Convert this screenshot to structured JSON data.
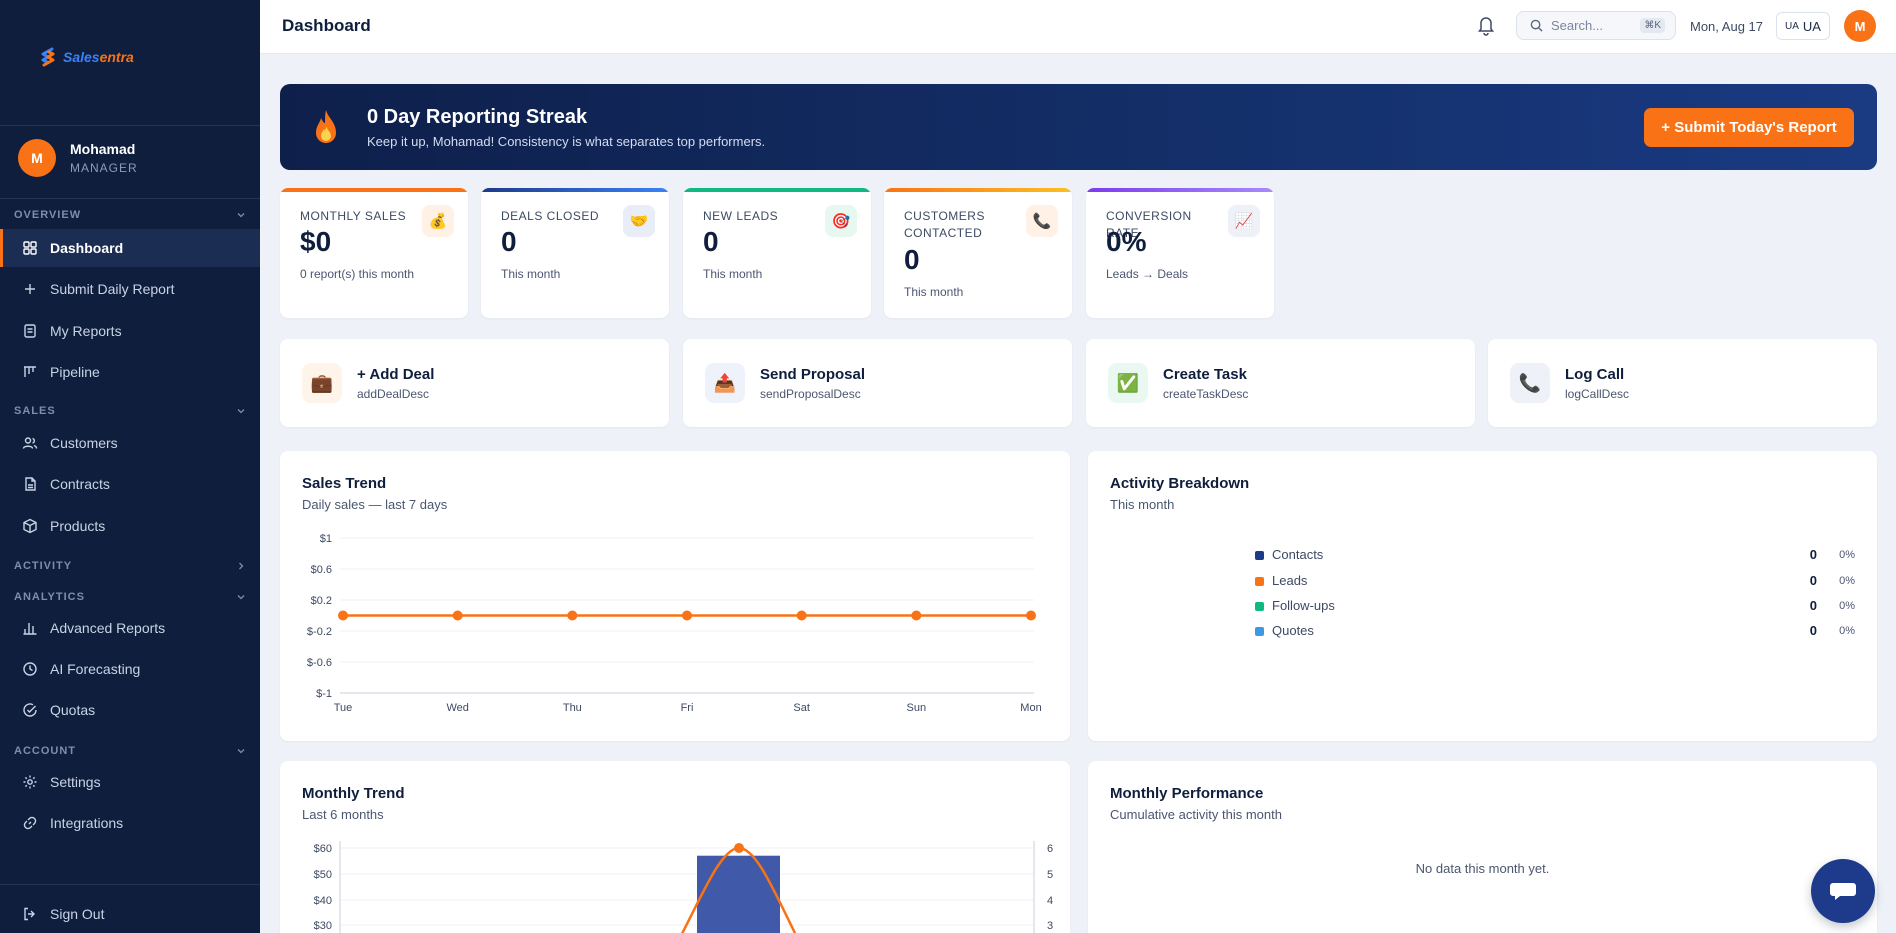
{
  "brand": {
    "part1": "Sales",
    "part2": "entra"
  },
  "user": {
    "initial": "M",
    "name": "Mohamad",
    "role": "MANAGER"
  },
  "sidebar": {
    "sections": [
      {
        "label": "OVERVIEW",
        "items": [
          "Dashboard",
          "Submit Daily Report",
          "My Reports",
          "Pipeline"
        ]
      },
      {
        "label": "SALES",
        "items": [
          "Customers",
          "Contracts",
          "Products"
        ]
      },
      {
        "label": "ACTIVITY",
        "items": []
      },
      {
        "label": "ANALYTICS",
        "items": [
          "Advanced Reports",
          "AI Forecasting",
          "Quotas"
        ]
      },
      {
        "label": "ACCOUNT",
        "items": [
          "Settings",
          "Integrations"
        ]
      }
    ],
    "sign_out": "Sign Out"
  },
  "header": {
    "title": "Dashboard",
    "search_placeholder": "Search...",
    "search_shortcut": "⌘K",
    "date": "Mon, Aug 17",
    "lang_flag": "UA",
    "lang_label": "UA",
    "avatar_initial": "M"
  },
  "banner": {
    "title": "0 Day Reporting Streak",
    "subtitle": "Keep it up, Mohamad! Consistency is what separates top performers.",
    "button": "+ Submit Today's Report"
  },
  "kpis": [
    {
      "label": "MONTHLY SALES",
      "value": "$0",
      "sub": "0 report(s) this month",
      "icon": "💰",
      "color": "#f97316"
    },
    {
      "label": "DEALS CLOSED",
      "value": "0",
      "sub": "This month",
      "icon": "🤝",
      "color": "#1e3a8a"
    },
    {
      "label": "NEW LEADS",
      "value": "0",
      "sub": "This month",
      "icon": "🎯",
      "color": "#10b981"
    },
    {
      "label": "CUSTOMERS CONTACTED",
      "value": "0",
      "sub": "This month",
      "icon": "📞",
      "color": "#f97316"
    },
    {
      "label": "CONVERSION RATE",
      "value": "0%",
      "sub": "Leads → Deals",
      "icon": "📈",
      "color": "#7c3aed"
    }
  ],
  "quick_actions": [
    {
      "title": "+ Add Deal",
      "desc": "addDealDesc",
      "icon": "💼"
    },
    {
      "title": "Send Proposal",
      "desc": "sendProposalDesc",
      "icon": "📤"
    },
    {
      "title": "Create Task",
      "desc": "createTaskDesc",
      "icon": "✅"
    },
    {
      "title": "Log Call",
      "desc": "logCallDesc",
      "icon": "📞"
    }
  ],
  "sales_trend": {
    "title": "Sales Trend",
    "subtitle": "Daily sales — last 7 days"
  },
  "activity": {
    "title": "Activity Breakdown",
    "subtitle": "This month",
    "items": [
      {
        "name": "Contacts",
        "value": "0",
        "pct": "0%",
        "color": "#1e3a8a"
      },
      {
        "name": "Leads",
        "value": "0",
        "pct": "0%",
        "color": "#f97316"
      },
      {
        "name": "Follow-ups",
        "value": "0",
        "pct": "0%",
        "color": "#10b981"
      },
      {
        "name": "Quotes",
        "value": "0",
        "pct": "0%",
        "color": "#3b9be0"
      }
    ]
  },
  "monthly_trend": {
    "title": "Monthly Trend",
    "subtitle": "Last 6 months"
  },
  "monthly_performance": {
    "title": "Monthly Performance",
    "subtitle": "Cumulative activity this month",
    "empty": "No data this month yet."
  },
  "chart_data": [
    {
      "type": "line",
      "x": [
        "Tue",
        "Wed",
        "Thu",
        "Fri",
        "Sat",
        "Sun",
        "Mon"
      ],
      "series": [
        {
          "values": [
            0,
            0,
            0,
            0,
            0,
            0,
            0
          ],
          "color": "#f97316"
        }
      ],
      "yticks": [
        "$1",
        "$0.6",
        "$0.2",
        "$-0.2",
        "$-0.6",
        "$-1"
      ],
      "ylim": [
        -1,
        1
      ],
      "grid": true
    },
    {
      "type": "bar",
      "yticks_left": [
        "$60",
        "$50",
        "$40",
        "$30"
      ],
      "yticks_right": [
        "6",
        "5",
        "4",
        "3"
      ],
      "ylim_left": [
        0,
        60
      ],
      "ylim_right": [
        0,
        6
      ],
      "bar_color": "#4059a8",
      "line_color": "#f97316",
      "bar_peak": 57,
      "line_peak": 6
    }
  ]
}
